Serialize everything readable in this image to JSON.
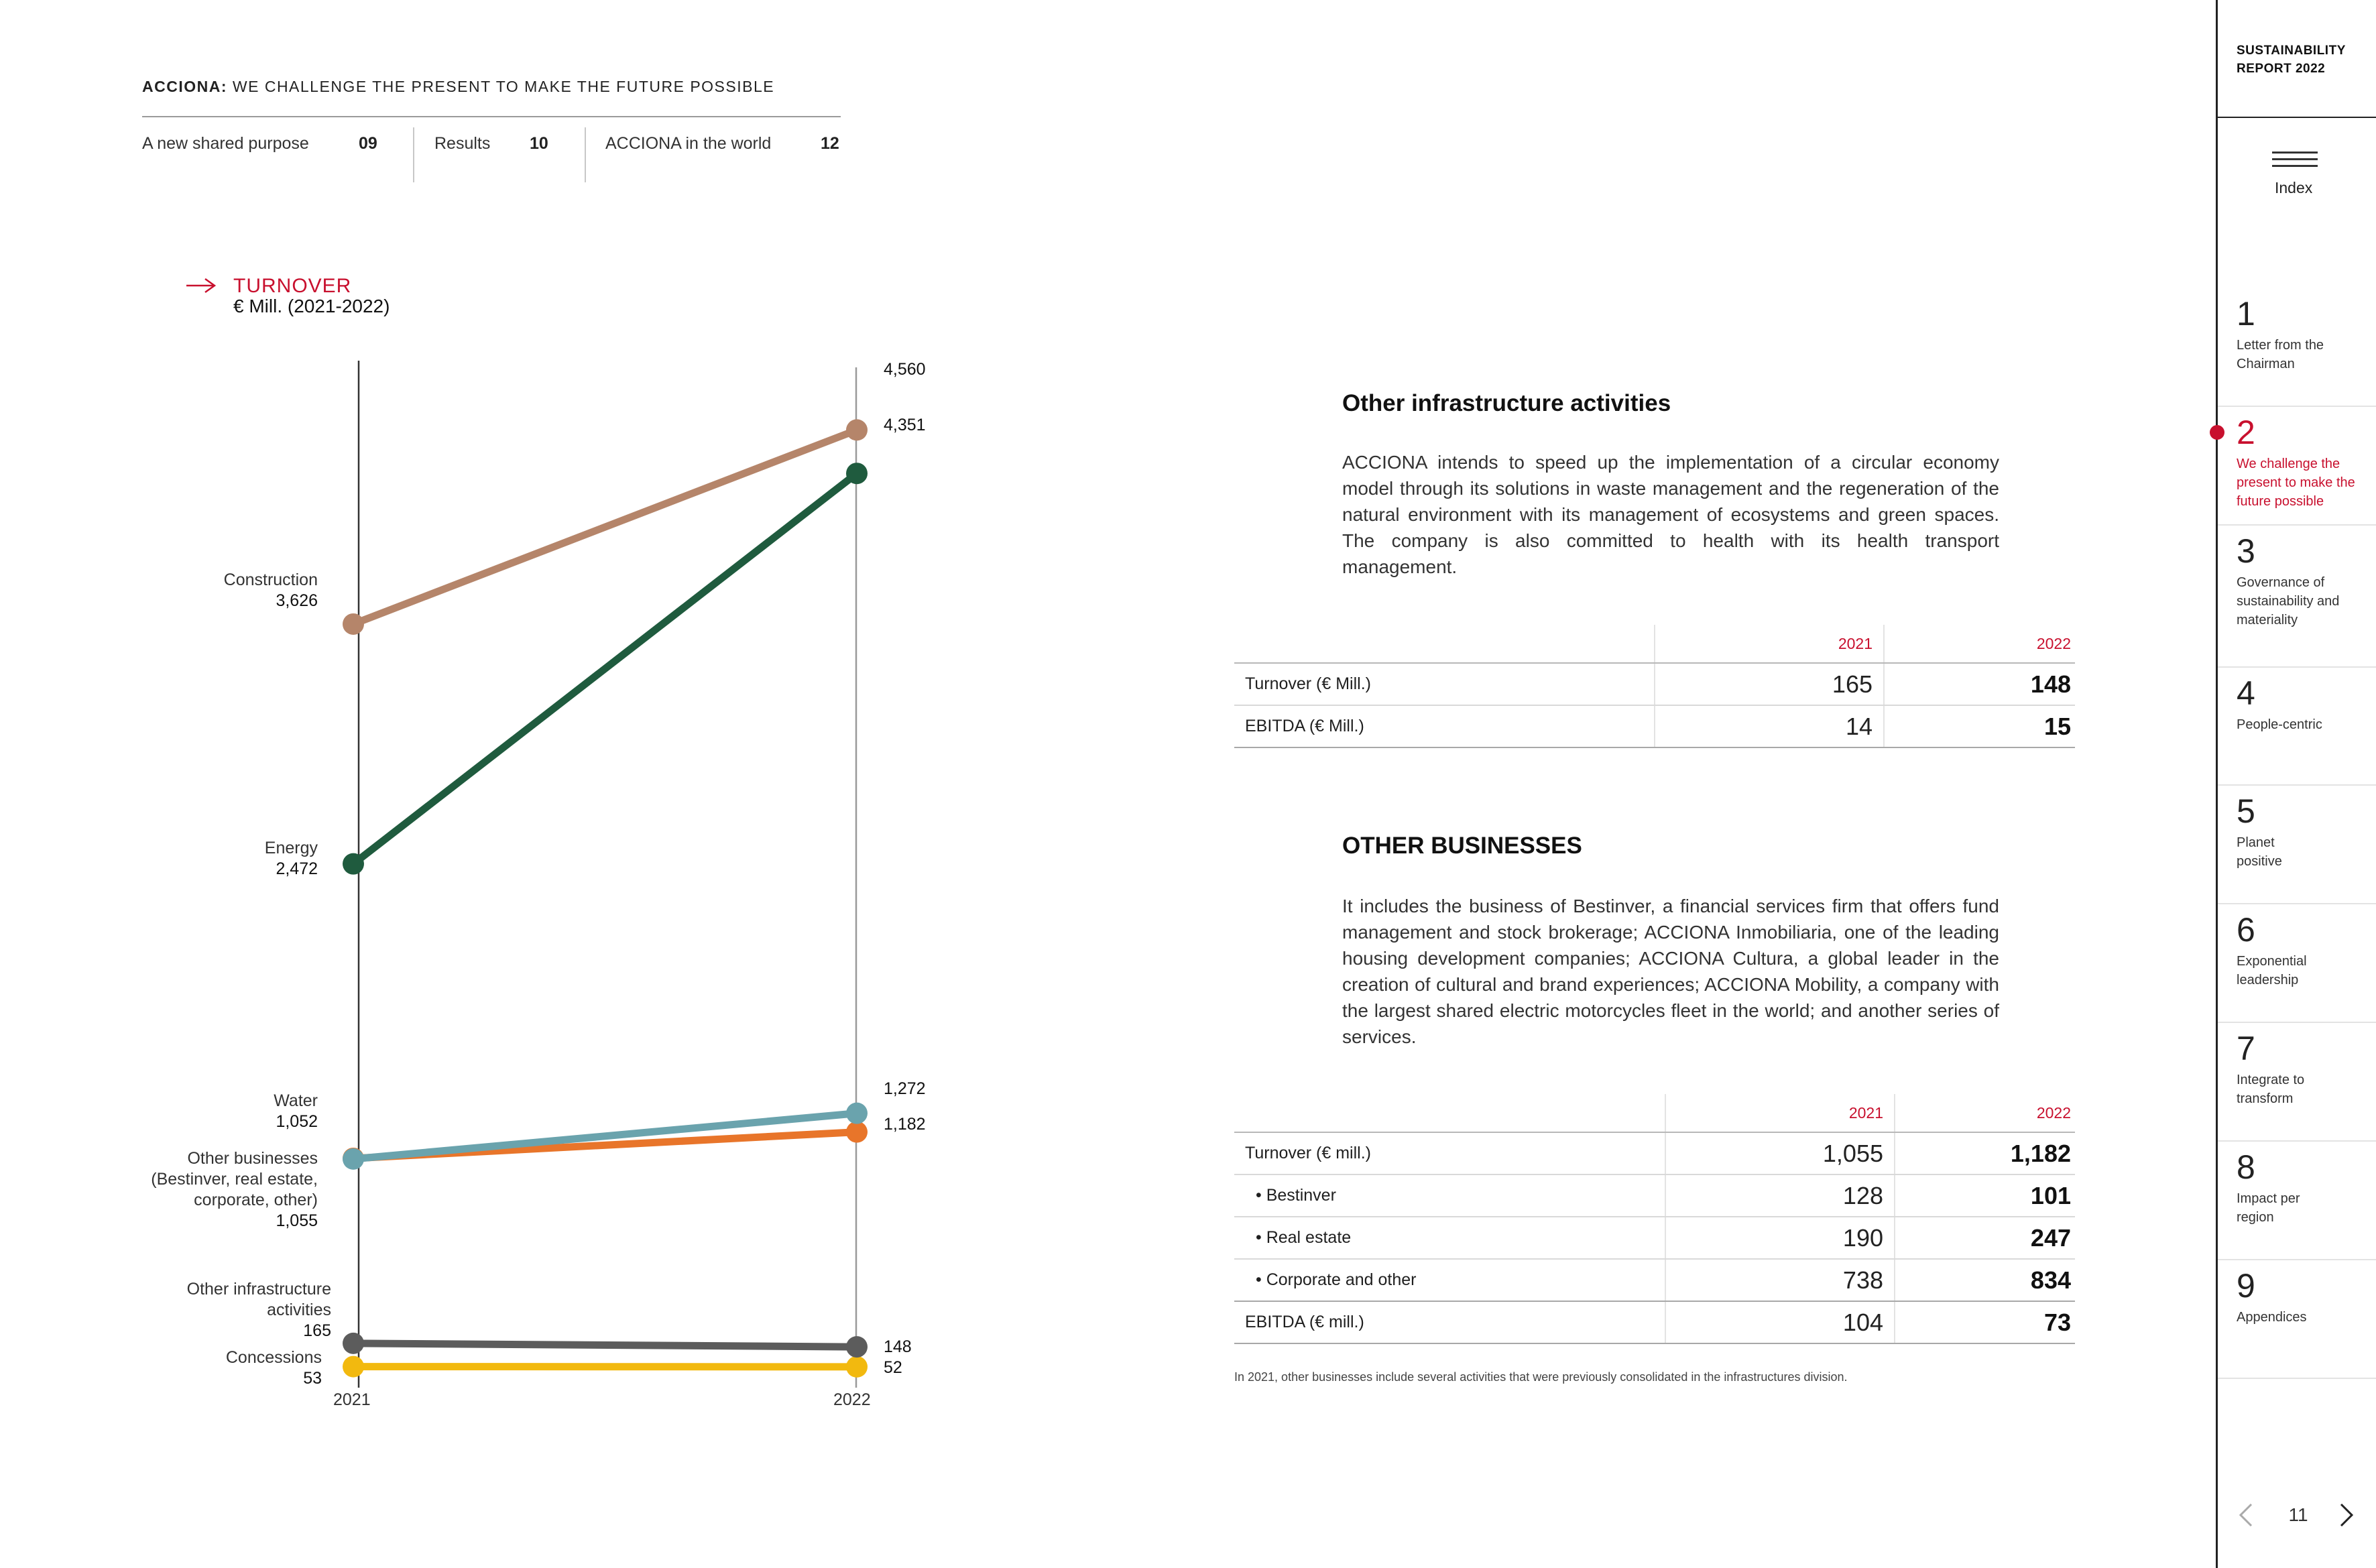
{
  "header": {
    "brand": "ACCIONA:",
    "title": "WE CHALLENGE THE PRESENT TO MAKE THE FUTURE POSSIBLE",
    "nav": [
      {
        "label": "A new shared purpose",
        "page": "09"
      },
      {
        "label": "Results",
        "page": "10"
      },
      {
        "label": "ACCIONA in the world",
        "page": "12"
      }
    ]
  },
  "chart_data": {
    "type": "line",
    "title": "TURNOVER",
    "subtitle": "€ Mill. (2021-2022)",
    "x": [
      "2021",
      "2022"
    ],
    "series": [
      {
        "name": "Construction",
        "values": [
          3626,
          4560
        ],
        "color": "#b5856a",
        "label_2021": "3,626",
        "label_2022": "4,560"
      },
      {
        "name": "Energy",
        "values": [
          2472,
          4351
        ],
        "color": "#1f5b3e",
        "label_2021": "2,472",
        "label_2022": "4,351"
      },
      {
        "name": "Water",
        "values": [
          1052,
          1272
        ],
        "color": "#6aa3ad",
        "label_2021": "1,052",
        "label_2022": "1,272"
      },
      {
        "name": "Other businesses (Bestinver, real estate, corporate, other)",
        "values": [
          1055,
          1182
        ],
        "color": "#e8752a",
        "label_2021": "1,055",
        "label_2022": "1,182"
      },
      {
        "name": "Other infrastructure activities",
        "values": [
          165,
          148
        ],
        "color": "#5c5c5c",
        "label_2021": "165",
        "label_2022": "148"
      },
      {
        "name": "Concessions",
        "values": [
          53,
          52
        ],
        "color": "#f2b90f",
        "label_2021": "53",
        "label_2022": "52"
      }
    ],
    "left_labels": {
      "construction": "Construction",
      "energy": "Energy",
      "water": "Water",
      "other_businesses_1": "Other businesses",
      "other_businesses_2": "(Bestinver, real estate,",
      "other_businesses_3": "corporate, other)",
      "other_infra_1": "Other infrastructure",
      "other_infra_2": "activities",
      "concessions": "Concessions"
    },
    "grid": false,
    "legend": "none"
  },
  "other_infra": {
    "title": "Other infrastructure activities",
    "text": "ACCIONA intends to speed up the implementation of a circular economy model through its solutions in waste management and the regeneration of the natural environment with its management of ecosystems and green spaces. The company is also committed to health with its health transport management.",
    "table": {
      "years": [
        "2021",
        "2022"
      ],
      "rows": [
        {
          "label": "Turnover (€ Mill.)",
          "v2021": "165",
          "v2022": "148"
        },
        {
          "label": "EBITDA (€ Mill.)",
          "v2021": "14",
          "v2022": "15"
        }
      ]
    }
  },
  "other_businesses": {
    "title": "OTHER BUSINESSES",
    "text": "It includes the business of Bestinver, a financial services firm that offers fund management and stock brokerage; ACCIONA Inmobiliaria, one of the leading housing development companies; ACCIONA Cultura, a global leader in the creation of cultural and brand experiences; ACCIONA Mobility, a company with the largest shared electric motorcycles fleet in the world; and another series of services.",
    "table": {
      "years": [
        "2021",
        "2022"
      ],
      "rows": [
        {
          "label": "Turnover (€ mill.)",
          "v2021": "1,055",
          "v2022": "1,182"
        },
        {
          "label": "• Bestinver",
          "v2021": "128",
          "v2022": "101"
        },
        {
          "label": "• Real estate",
          "v2021": "190",
          "v2022": "247"
        },
        {
          "label": "• Corporate and other",
          "v2021": "738",
          "v2022": "834"
        },
        {
          "label": "EBITDA (€ mill.)",
          "v2021": "104",
          "v2022": "73"
        }
      ]
    },
    "footnote": "In 2021, other businesses include several activities that were previously consolidated in the infrastructures division."
  },
  "sidebar": {
    "report_title_1": "SUSTAINABILITY",
    "report_title_2": "REPORT 2022",
    "index_label": "Index",
    "items": [
      {
        "num": "1",
        "label": "Letter from the Chairman"
      },
      {
        "num": "2",
        "label": "We challenge the present to make the future possible"
      },
      {
        "num": "3",
        "label": "Governance of sustainability and materiality"
      },
      {
        "num": "4",
        "label": "People-centric"
      },
      {
        "num": "5",
        "label": "Planet positive"
      },
      {
        "num": "6",
        "label": "Exponential leadership"
      },
      {
        "num": "7",
        "label": "Integrate to transform"
      },
      {
        "num": "8",
        "label": "Impact per region"
      },
      {
        "num": "9",
        "label": "Appendices"
      }
    ],
    "page_number": "11"
  }
}
